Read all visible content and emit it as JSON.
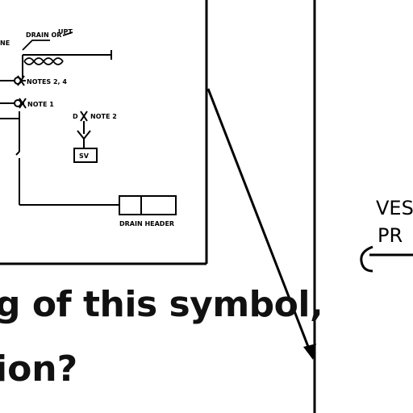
{
  "diagram": {
    "labels": {
      "drain_or": "DRAIN OR",
      "line_fragment": "NE",
      "upt": "UPT",
      "notes_2_4": "NOTES 2, 4",
      "note_1": "NOTE 1",
      "d_note_2": "D",
      "note_2": "NOTE 2",
      "sv": "SV",
      "drain_header": "DRAIN HEADER"
    },
    "right_panel": {
      "line1": "VES",
      "line2": "PR"
    }
  },
  "caption": {
    "line1": "g of this symbol,",
    "line2": "ion?"
  }
}
